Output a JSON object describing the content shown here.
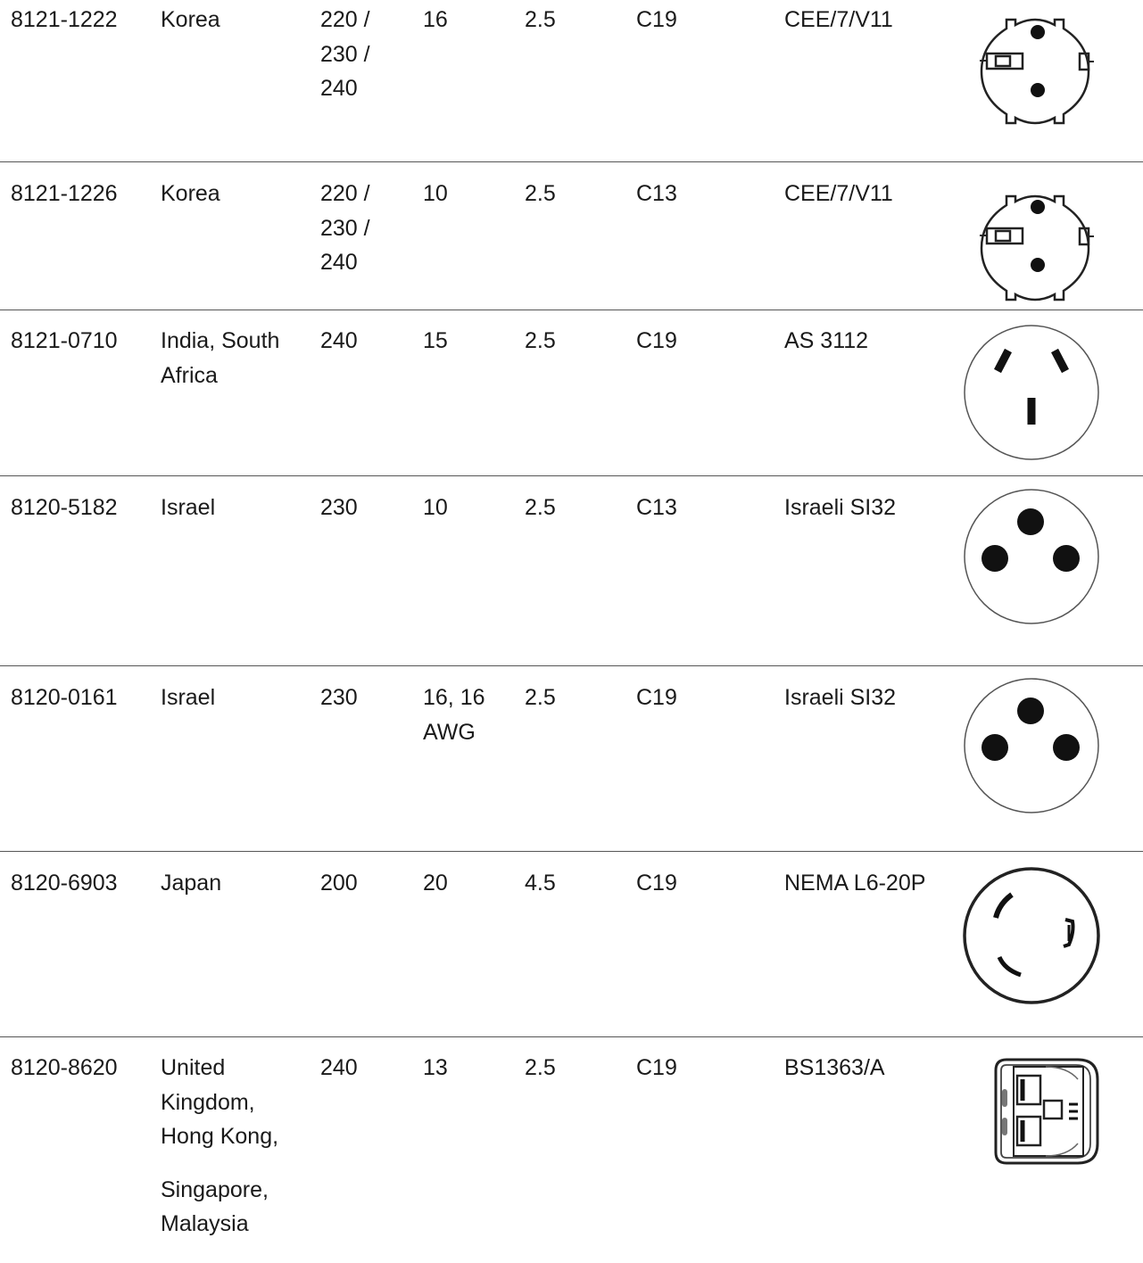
{
  "rows": [
    {
      "part": "8121-1222",
      "country": [
        "Korea"
      ],
      "voltage": [
        "220 /",
        "230 /",
        "240"
      ],
      "amperage": [
        "16"
      ],
      "length": "2.5",
      "connector": "C19",
      "plug_type": "CEE/7/V11",
      "plug_icon": "schuko-plug-icon"
    },
    {
      "part": "8121-1226",
      "country": [
        "Korea"
      ],
      "voltage": [
        "220 /",
        "230 /",
        "240"
      ],
      "amperage": [
        "10"
      ],
      "length": "2.5",
      "connector": "C13",
      "plug_type": "CEE/7/V11",
      "plug_icon": "schuko-plug-icon"
    },
    {
      "part": "8121-0710",
      "country": [
        "India, South",
        "Africa"
      ],
      "voltage": [
        "240"
      ],
      "amperage": [
        "15"
      ],
      "length": "2.5",
      "connector": "C19",
      "plug_type": "AS 3112",
      "plug_icon": "as3112-plug-icon"
    },
    {
      "part": "8120-5182",
      "country": [
        "Israel"
      ],
      "voltage": [
        "230"
      ],
      "amperage": [
        "10"
      ],
      "length": "2.5",
      "connector": "C13",
      "plug_type": "Israeli SI32",
      "plug_icon": "si32-plug-icon"
    },
    {
      "part": "8120-0161",
      "country": [
        "Israel"
      ],
      "voltage": [
        "230"
      ],
      "amperage": [
        "16, 16",
        "AWG"
      ],
      "length": "2.5",
      "connector": "C19",
      "plug_type": "Israeli SI32",
      "plug_icon": "si32-plug-icon"
    },
    {
      "part": "8120-6903",
      "country": [
        "Japan"
      ],
      "voltage": [
        "200"
      ],
      "amperage": [
        "20"
      ],
      "length": "4.5",
      "connector": "C19",
      "plug_type": "NEMA L6-20P",
      "plug_icon": "nema-l6-20p-plug-icon"
    },
    {
      "part": "8120-8620",
      "country": [
        "United",
        "Kingdom,",
        "Hong Kong,"
      ],
      "country_extra": [
        "Singapore,",
        "Malaysia"
      ],
      "voltage": [
        "240"
      ],
      "amperage": [
        "13"
      ],
      "length": "2.5",
      "connector": "C19",
      "plug_type": "BS1363/A",
      "plug_icon": "bs1363-plug-icon"
    }
  ]
}
